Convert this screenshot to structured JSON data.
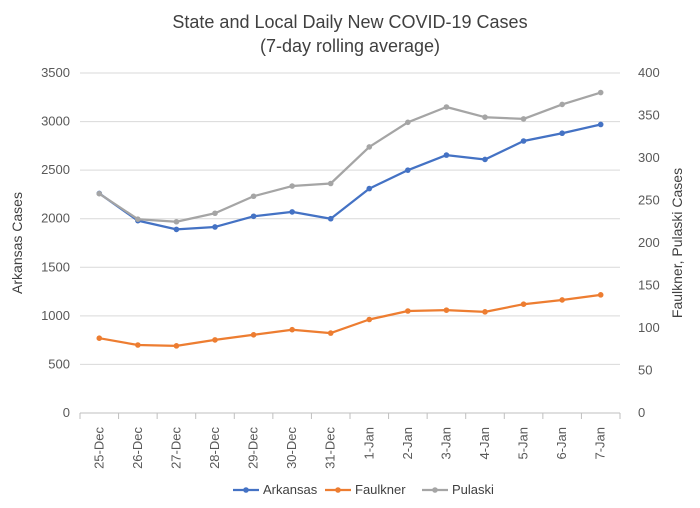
{
  "chart_data": {
    "type": "line",
    "title": "State and Local Daily New COVID-19 Cases",
    "subtitle": "(7-day rolling average)",
    "categories": [
      "25-Dec",
      "26-Dec",
      "27-Dec",
      "28-Dec",
      "29-Dec",
      "30-Dec",
      "31-Dec",
      "1-Jan",
      "2-Jan",
      "3-Jan",
      "4-Jan",
      "5-Jan",
      "6-Jan",
      "7-Jan"
    ],
    "ylabel": "Arkansas Cases",
    "y2label": "Faulkner, Pulaski Cases",
    "ylim": [
      0,
      3500
    ],
    "y2lim": [
      0,
      400
    ],
    "yticks": [
      0,
      500,
      1000,
      1500,
      2000,
      2500,
      3000,
      3500
    ],
    "y2ticks": [
      0,
      50,
      100,
      150,
      200,
      250,
      300,
      350,
      400
    ],
    "grid": true,
    "legend_position": "bottom",
    "series": [
      {
        "name": "Arkansas",
        "axis": "left",
        "color": "#4472c4",
        "values": [
          2260,
          1980,
          1890,
          1915,
          2025,
          2070,
          2000,
          2310,
          2500,
          2655,
          2610,
          2800,
          2880,
          2970
        ]
      },
      {
        "name": "Faulkner",
        "axis": "right",
        "color": "#ed7d31",
        "values": [
          88,
          80,
          79,
          86,
          92,
          98,
          94,
          110,
          120,
          121,
          119,
          128,
          133,
          139
        ]
      },
      {
        "name": "Pulaski",
        "axis": "right",
        "color": "#a5a5a5",
        "values": [
          258,
          228,
          225,
          235,
          255,
          267,
          270,
          313,
          342,
          360,
          348,
          346,
          363,
          377
        ]
      }
    ]
  }
}
